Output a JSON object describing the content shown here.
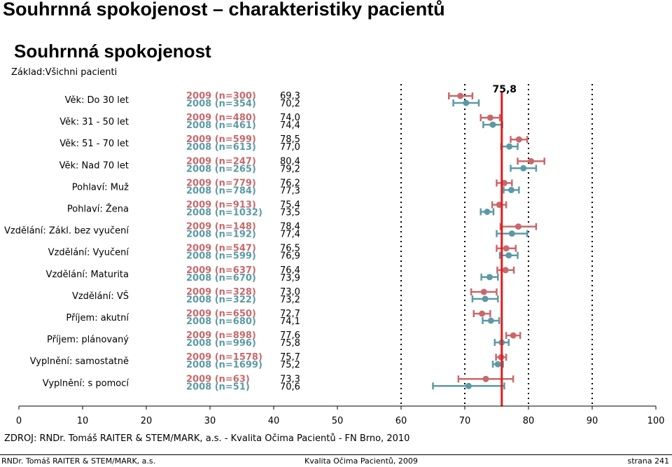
{
  "slide_title": "Souhrnná spokojenost – charakteristiky pacientů",
  "footer": {
    "source": "ZDROJ: RNDr. Tomáš RAITER & STEM/MARK, a.s. -  Kvalita Očima Pacientů - FN Brno, 2010",
    "left": "RNDr. Tomáš RAITER & STEM/MARK, a.s.",
    "center": "Kvalita Očima Pacientů, 2009",
    "right": "strana 241"
  },
  "chart_data": {
    "type": "scatter",
    "title": "Souhrnná spokojenost",
    "base": "Základ:Všichni pacienti",
    "xlim": [
      0,
      100
    ],
    "x_ticks": [
      "0",
      "10",
      "20",
      "30",
      "40",
      "50",
      "60",
      "70",
      "80",
      "90",
      "100"
    ],
    "reference_line": {
      "value": 75.8,
      "label": "75,8",
      "color": "#e41a1c"
    },
    "series": [
      {
        "name": "2009",
        "color": "#c9686b"
      },
      {
        "name": "2008",
        "color": "#5b9aa5"
      }
    ],
    "rows": [
      {
        "label": "Věk: Do 30 let",
        "n2009": "2009 (n=300)",
        "n2008": "2008 (n=354)",
        "v2009": 69.3,
        "v2008": 70.2,
        "t2009": "69,3",
        "t2008": "70,2",
        "ci2009": [
          67.5,
          71.2
        ],
        "ci2008": [
          68.2,
          72.2
        ]
      },
      {
        "label": "Věk: 31 - 50 let",
        "n2009": "2009 (n=480)",
        "n2008": "2008 (n=461)",
        "v2009": 74.0,
        "v2008": 74.4,
        "t2009": "74,0",
        "t2008": "74,4",
        "ci2009": [
          72.5,
          75.5
        ],
        "ci2008": [
          72.9,
          75.9
        ]
      },
      {
        "label": "Věk: 51 - 70 let",
        "n2009": "2009 (n=599)",
        "n2008": "2008 (n=613)",
        "v2009": 78.5,
        "v2008": 77.0,
        "t2009": "78,5",
        "t2008": "77,0",
        "ci2009": [
          77.2,
          79.8
        ],
        "ci2008": [
          75.7,
          78.3
        ]
      },
      {
        "label": "Věk: Nad 70 let",
        "n2009": "2009 (n=247)",
        "n2008": "2008 (n=265)",
        "v2009": 80.4,
        "v2008": 79.2,
        "t2009": "80,4",
        "t2008": "79,2",
        "ci2009": [
          78.3,
          82.5
        ],
        "ci2008": [
          77.2,
          81.2
        ]
      },
      {
        "label": "Pohlaví: Muž",
        "n2009": "2009 (n=779)",
        "n2008": "2008 (n=784)",
        "v2009": 76.2,
        "v2008": 77.3,
        "t2009": "76,2",
        "t2008": "77,3",
        "ci2009": [
          75.0,
          77.4
        ],
        "ci2008": [
          76.1,
          78.5
        ]
      },
      {
        "label": "Pohlaví: Žena",
        "n2009": "2009 (n=913)",
        "n2008": "2008 (n=1032)",
        "v2009": 75.4,
        "v2008": 73.5,
        "t2009": "75,4",
        "t2008": "73,5",
        "ci2009": [
          74.3,
          76.5
        ],
        "ci2008": [
          72.5,
          74.5
        ]
      },
      {
        "label": "Vzdělání: Zákl. bez vyučení",
        "n2009": "2009 (n=148)",
        "n2008": "2008 (n=192)",
        "v2009": 78.4,
        "v2008": 77.4,
        "t2009": "78,4",
        "t2008": "77,4",
        "ci2009": [
          75.6,
          81.2
        ],
        "ci2008": [
          75.0,
          79.8
        ]
      },
      {
        "label": "Vzdělání: Vyučení",
        "n2009": "2009 (n=547)",
        "n2008": "2008 (n=599)",
        "v2009": 76.5,
        "v2008": 76.9,
        "t2009": "76,5",
        "t2008": "76,9",
        "ci2009": [
          75.0,
          78.0
        ],
        "ci2008": [
          75.5,
          78.3
        ]
      },
      {
        "label": "Vzdělání: Maturita",
        "n2009": "2009 (n=637)",
        "n2008": "2008 (n=670)",
        "v2009": 76.4,
        "v2008": 73.9,
        "t2009": "76,4",
        "t2008": "73,9",
        "ci2009": [
          75.1,
          77.7
        ],
        "ci2008": [
          72.6,
          75.2
        ]
      },
      {
        "label": "Vzdělání: VŠ",
        "n2009": "2009 (n=328)",
        "n2008": "2008 (n=322)",
        "v2009": 73.0,
        "v2008": 73.2,
        "t2009": "73,0",
        "t2008": "73,2",
        "ci2009": [
          71.0,
          75.0
        ],
        "ci2008": [
          71.2,
          75.2
        ]
      },
      {
        "label": "Příjem: akutní",
        "n2009": "2009 (n=650)",
        "n2008": "2008 (n=680)",
        "v2009": 72.7,
        "v2008": 74.1,
        "t2009": "72,7",
        "t2008": "74,1",
        "ci2009": [
          71.4,
          74.0
        ],
        "ci2008": [
          72.8,
          75.4
        ]
      },
      {
        "label": "Příjem: plánovaný",
        "n2009": "2009 (n=898)",
        "n2008": "2008 (n=996)",
        "v2009": 77.6,
        "v2008": 75.8,
        "t2009": "77,6",
        "t2008": "75,8",
        "ci2009": [
          76.5,
          78.7
        ],
        "ci2008": [
          74.7,
          76.9
        ]
      },
      {
        "label": "Vyplnění: samostatně",
        "n2009": "2009 (n=1578)",
        "n2008": "2008 (n=1699)",
        "v2009": 75.7,
        "v2008": 75.2,
        "t2009": "75,7",
        "t2008": "75,2",
        "ci2009": [
          74.9,
          76.5
        ],
        "ci2008": [
          74.4,
          76.0
        ]
      },
      {
        "label": "Vyplnění: s pomocí",
        "n2009": "2009 (n=63)",
        "n2008": "2008 (n=51)",
        "v2009": 73.3,
        "v2008": 70.6,
        "t2009": "73,3",
        "t2008": "70,6",
        "ci2009": [
          69.0,
          77.6
        ],
        "ci2008": [
          65.0,
          76.2
        ]
      }
    ]
  }
}
